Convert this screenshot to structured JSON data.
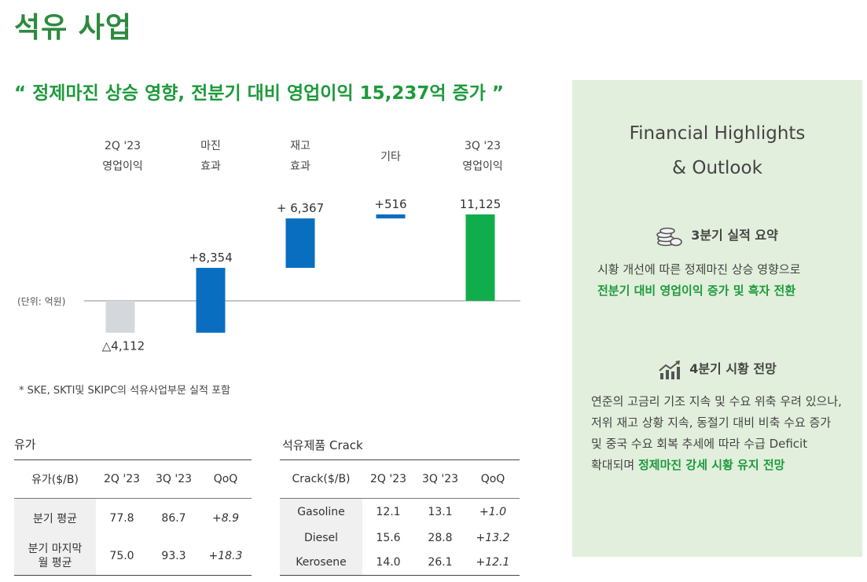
{
  "page": {
    "title": "석유 사업",
    "headline": "“ 정제마진 상승 영향, 전분기 대비 영업이익 15,237억 증가 ”",
    "footnote": "* SKE, SKTI및 SKIPC의 석유사업부문 실적 포함"
  },
  "chart_data": {
    "type": "bar",
    "subtype": "waterfall",
    "unit_label": "(단위: 억원)",
    "categories": [
      [
        "2Q '23",
        "영업이익"
      ],
      [
        "마진",
        "효과"
      ],
      [
        "재고",
        "효과"
      ],
      [
        "기타"
      ],
      [
        "3Q '23",
        "영업이익"
      ]
    ],
    "values": [
      -4112,
      8354,
      6367,
      516,
      11125
    ],
    "value_labels": [
      "△4,112",
      "+8,354",
      "+ 6,367",
      "+516",
      "11,125"
    ],
    "bar_colors": [
      "#d4d8dc",
      "#0a6ec0",
      "#0a6ec0",
      "#0a6ec0",
      "#10ad4c"
    ]
  },
  "oil_price": {
    "title": "유가",
    "headers": [
      "유가($/B)",
      "2Q '23",
      "3Q '23",
      "QoQ"
    ],
    "rows": [
      {
        "label": "분기 평균",
        "q2": "77.8",
        "q3": "86.7",
        "qoq": "+8.9"
      },
      {
        "label": "분기 마지막\n월 평균",
        "q2": "75.0",
        "q3": "93.3",
        "qoq": "+18.3"
      }
    ]
  },
  "crack": {
    "title": "석유제품 Crack",
    "headers": [
      "Crack($/B)",
      "2Q '23",
      "3Q '23",
      "QoQ"
    ],
    "rows": [
      {
        "label": "Gasoline",
        "q2": "12.1",
        "q3": "13.1",
        "qoq": "+1.0"
      },
      {
        "label": "Diesel",
        "q2": "15.6",
        "q3": "28.8",
        "qoq": "+13.2"
      },
      {
        "label": "Kerosene",
        "q2": "14.0",
        "q3": "26.1",
        "qoq": "+12.1"
      }
    ]
  },
  "panel": {
    "title_line1": "Financial Highlights",
    "title_line2": "& Outlook",
    "section1": {
      "icon": "coins-icon",
      "heading": "3분기 실적 요약",
      "line1": "시황 개선에 따른 정제마진 상승 영향으로",
      "line2_highlight": "전분기 대비 영업이익 증가 및 흑자 전환"
    },
    "section2": {
      "icon": "chart-up-icon",
      "heading": "4분기 시황 전망",
      "line1": "연준의 고금리 기조 지속 및 수요 위축 우려 있으나,",
      "line2": "저위 재고 상황 지속, 동절기 대비 비축 수요 증가",
      "line3": "및 중국 수요 회복 추세에 따라 수급 Deficit",
      "line4_prefix": "확대되며",
      "line4_highlight": "정제마진 강세 시황 유지 전망"
    }
  },
  "colors": {
    "title_green": "#2d8a3e",
    "highlight_green": "#1e9a3c",
    "blue": "#0a6ec0",
    "panel_bg": "#e2efdc"
  }
}
